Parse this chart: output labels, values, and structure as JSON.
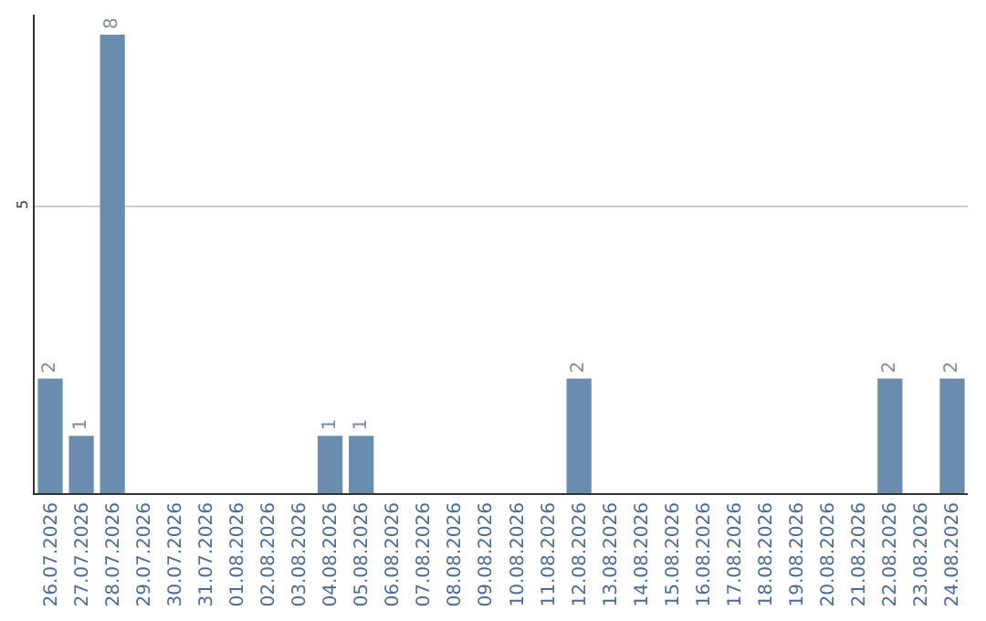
{
  "chart_data": {
    "type": "bar",
    "categories": [
      "26.07.2026",
      "27.07.2026",
      "28.07.2026",
      "29.07.2026",
      "30.07.2026",
      "31.07.2026",
      "01.08.2026",
      "02.08.2026",
      "03.08.2026",
      "04.08.2026",
      "05.08.2026",
      "06.08.2026",
      "07.08.2026",
      "08.08.2026",
      "09.08.2026",
      "10.08.2026",
      "11.08.2026",
      "12.08.2026",
      "13.08.2026",
      "14.08.2026",
      "15.08.2026",
      "16.08.2026",
      "17.08.2026",
      "18.08.2026",
      "19.08.2026",
      "20.08.2026",
      "21.08.2026",
      "22.08.2026",
      "23.08.2026",
      "24.08.2026"
    ],
    "values": [
      2,
      1,
      8,
      0,
      0,
      0,
      0,
      0,
      0,
      1,
      1,
      0,
      0,
      0,
      0,
      0,
      0,
      2,
      0,
      0,
      0,
      0,
      0,
      0,
      0,
      0,
      0,
      2,
      0,
      2
    ],
    "value_labels": [
      "2",
      "1",
      "8",
      null,
      null,
      null,
      null,
      null,
      null,
      "1",
      "1",
      null,
      null,
      null,
      null,
      null,
      null,
      "2",
      null,
      null,
      null,
      null,
      null,
      null,
      null,
      null,
      null,
      "2",
      null,
      "2"
    ],
    "color": "#6a8caf",
    "ylim": [
      0,
      8.35
    ],
    "yticks": [
      5
    ],
    "grid": "y",
    "legend": false
  }
}
